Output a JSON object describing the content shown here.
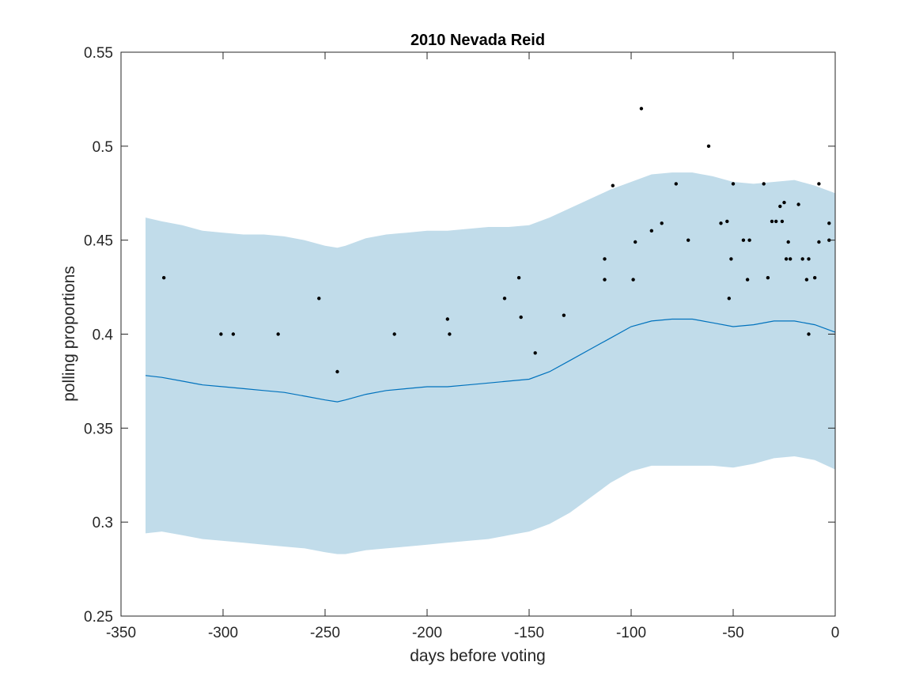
{
  "chart_data": {
    "type": "line",
    "title": "2010 Nevada Reid",
    "xlabel": "days before voting",
    "ylabel": "polling proportions",
    "xlim": [
      -350,
      0
    ],
    "ylim": [
      0.25,
      0.55
    ],
    "xticks": [
      -350,
      -300,
      -250,
      -200,
      -150,
      -100,
      -50,
      0
    ],
    "yticks": [
      0.25,
      0.3,
      0.35,
      0.4,
      0.45,
      0.5,
      0.55
    ],
    "xtick_labels": [
      "-350",
      "-300",
      "-250",
      "-200",
      "-150",
      "-100",
      "-50",
      "0"
    ],
    "ytick_labels": [
      "0.25",
      "0.3",
      "0.35",
      "0.4",
      "0.45",
      "0.5",
      "0.55"
    ],
    "grid": false,
    "colors": {
      "band_fill": "#c1dcea",
      "line": "#0072bd",
      "points": "#000000",
      "axes": "#262626"
    },
    "series": [
      {
        "type": "area",
        "x": [
          -338,
          -330,
          -320,
          -310,
          -300,
          -290,
          -280,
          -270,
          -260,
          -250,
          -244,
          -240,
          -230,
          -220,
          -210,
          -200,
          -190,
          -180,
          -170,
          -160,
          -150,
          -140,
          -130,
          -120,
          -110,
          -100,
          -90,
          -80,
          -70,
          -60,
          -50,
          -40,
          -30,
          -20,
          -10,
          0
        ],
        "upper": [
          0.462,
          0.46,
          0.458,
          0.455,
          0.454,
          0.453,
          0.453,
          0.452,
          0.45,
          0.447,
          0.446,
          0.447,
          0.451,
          0.453,
          0.454,
          0.455,
          0.455,
          0.456,
          0.457,
          0.457,
          0.458,
          0.462,
          0.467,
          0.472,
          0.477,
          0.481,
          0.485,
          0.486,
          0.486,
          0.484,
          0.481,
          0.48,
          0.481,
          0.482,
          0.479,
          0.475
        ],
        "lower": [
          0.294,
          0.295,
          0.293,
          0.291,
          0.29,
          0.289,
          0.288,
          0.287,
          0.286,
          0.284,
          0.283,
          0.283,
          0.285,
          0.286,
          0.287,
          0.288,
          0.289,
          0.29,
          0.291,
          0.293,
          0.295,
          0.299,
          0.305,
          0.313,
          0.321,
          0.327,
          0.33,
          0.33,
          0.33,
          0.33,
          0.329,
          0.331,
          0.334,
          0.335,
          0.333,
          0.328
        ]
      },
      {
        "type": "line",
        "x": [
          -338,
          -330,
          -320,
          -310,
          -300,
          -290,
          -280,
          -270,
          -260,
          -250,
          -244,
          -240,
          -230,
          -220,
          -210,
          -200,
          -190,
          -180,
          -170,
          -160,
          -150,
          -140,
          -130,
          -120,
          -110,
          -100,
          -90,
          -80,
          -70,
          -60,
          -50,
          -40,
          -30,
          -20,
          -10,
          0
        ],
        "y": [
          0.378,
          0.377,
          0.375,
          0.373,
          0.372,
          0.371,
          0.37,
          0.369,
          0.367,
          0.365,
          0.364,
          0.365,
          0.368,
          0.37,
          0.371,
          0.372,
          0.372,
          0.373,
          0.374,
          0.375,
          0.376,
          0.38,
          0.386,
          0.392,
          0.398,
          0.404,
          0.407,
          0.408,
          0.408,
          0.406,
          0.404,
          0.405,
          0.407,
          0.407,
          0.405,
          0.401
        ]
      },
      {
        "type": "scatter",
        "x": [
          -329,
          -301,
          -295,
          -273,
          -253,
          -244,
          -216,
          -190,
          -189,
          -162,
          -155,
          -154,
          -147,
          -133,
          -113,
          -113,
          -109,
          -99,
          -98,
          -95,
          -90,
          -85,
          -78,
          -72,
          -62,
          -56,
          -53,
          -52,
          -51,
          -50,
          -45,
          -43,
          -42,
          -35,
          -33,
          -31,
          -29,
          -27,
          -26,
          -25,
          -24,
          -23,
          -22,
          -18,
          -16,
          -14,
          -13,
          -13,
          -10,
          -8,
          -8,
          -3,
          -3
        ],
        "y": [
          0.43,
          0.4,
          0.4,
          0.4,
          0.419,
          0.38,
          0.4,
          0.408,
          0.4,
          0.419,
          0.43,
          0.409,
          0.39,
          0.41,
          0.44,
          0.429,
          0.479,
          0.429,
          0.449,
          0.52,
          0.455,
          0.459,
          0.48,
          0.45,
          0.5,
          0.459,
          0.46,
          0.419,
          0.44,
          0.48,
          0.45,
          0.429,
          0.45,
          0.48,
          0.43,
          0.46,
          0.46,
          0.468,
          0.46,
          0.47,
          0.44,
          0.449,
          0.44,
          0.469,
          0.44,
          0.429,
          0.4,
          0.44,
          0.43,
          0.449,
          0.48,
          0.459,
          0.45
        ]
      }
    ]
  }
}
